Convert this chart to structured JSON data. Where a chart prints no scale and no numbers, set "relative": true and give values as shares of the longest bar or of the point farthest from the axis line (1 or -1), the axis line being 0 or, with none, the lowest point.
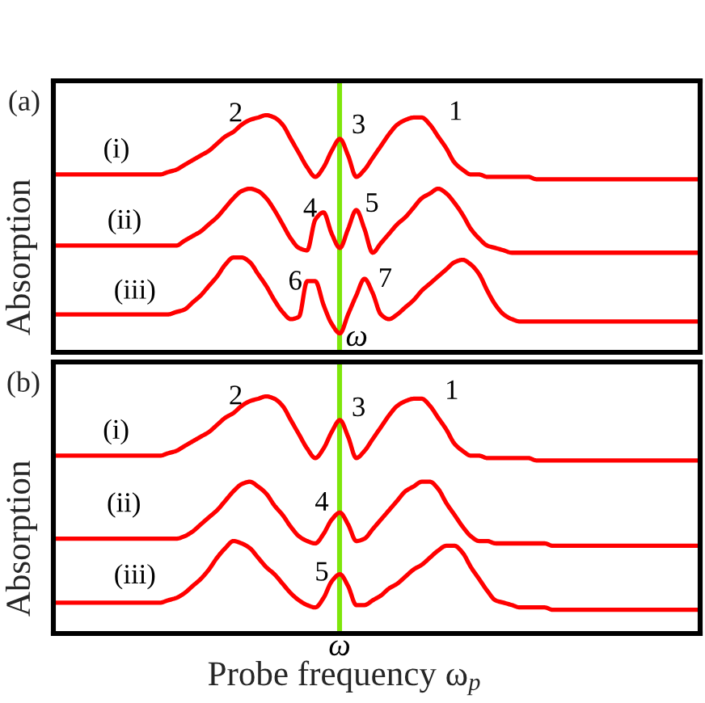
{
  "chart_data": [
    {
      "type": "line",
      "title": "(a)",
      "ylabel": "Absorption",
      "relative": true,
      "categories": [
        null,
        null,
        null,
        null,
        null,
        null,
        null,
        null,
        null,
        null,
        null,
        null,
        null,
        null,
        null,
        null,
        null,
        null,
        null,
        null,
        null,
        null,
        null,
        null,
        null,
        null,
        null,
        null,
        null,
        null,
        null,
        null,
        null,
        null,
        null,
        null,
        null,
        null,
        null,
        null,
        null,
        null,
        null,
        null,
        null,
        null,
        null,
        null,
        null,
        null,
        null,
        null,
        null,
        null,
        null,
        null,
        null,
        null,
        null,
        null,
        null,
        null,
        null,
        null,
        null,
        null,
        null,
        null,
        null,
        null,
        null,
        null,
        null,
        null,
        null,
        null,
        null,
        null,
        null,
        null
      ],
      "series": [
        {
          "name": "(i)",
          "color": "#ff0000",
          "values": [
            0.75,
            0.75,
            0.75,
            0.75,
            0.75,
            0.75,
            0.75,
            0.75,
            0.75,
            0.75,
            0.75,
            0.75,
            0.75,
            0.75,
            0.76,
            0.77,
            0.79,
            0.81,
            0.83,
            0.85,
            0.88,
            0.91,
            0.93,
            0.96,
            0.98,
            0.99,
            1.0,
            0.99,
            0.96,
            0.9,
            0.84,
            0.78,
            0.74,
            0.78,
            0.85,
            0.9,
            0.83,
            0.74,
            0.77,
            0.82,
            0.87,
            0.92,
            0.96,
            0.98,
            0.99,
            0.99,
            0.96,
            0.91,
            0.86,
            0.8,
            0.77,
            0.75,
            0.75,
            0.74,
            0.74,
            0.74,
            0.74,
            0.74,
            0.74,
            0.73,
            0.73,
            0.73,
            0.73,
            0.73,
            0.73,
            0.73,
            0.73,
            0.73,
            0.73,
            0.73,
            0.73,
            0.73,
            0.73,
            0.73,
            0.73,
            0.73,
            0.73,
            0.73,
            0.73,
            0.73
          ]
        },
        {
          "name": "(ii)",
          "color": "#ff0000",
          "values": [
            0.45,
            0.45,
            0.45,
            0.45,
            0.45,
            0.45,
            0.45,
            0.45,
            0.45,
            0.45,
            0.45,
            0.45,
            0.45,
            0.45,
            0.45,
            0.45,
            0.47,
            0.49,
            0.51,
            0.54,
            0.57,
            0.61,
            0.65,
            0.68,
            0.69,
            0.68,
            0.65,
            0.6,
            0.54,
            0.48,
            0.44,
            0.43,
            0.56,
            0.59,
            0.5,
            0.44,
            0.52,
            0.6,
            0.52,
            0.42,
            0.46,
            0.5,
            0.54,
            0.57,
            0.61,
            0.65,
            0.67,
            0.69,
            0.67,
            0.63,
            0.58,
            0.52,
            0.48,
            0.45,
            0.44,
            0.43,
            0.42,
            0.42,
            0.42,
            0.42,
            0.42,
            0.42,
            0.42,
            0.42,
            0.42,
            0.42,
            0.42,
            0.42,
            0.42,
            0.42,
            0.42,
            0.42,
            0.42,
            0.42,
            0.42,
            0.42,
            0.42,
            0.42,
            0.42,
            0.42
          ]
        },
        {
          "name": "(iii)",
          "color": "#ff0000",
          "values": [
            0.16,
            0.16,
            0.16,
            0.16,
            0.16,
            0.16,
            0.16,
            0.16,
            0.16,
            0.16,
            0.16,
            0.16,
            0.16,
            0.16,
            0.16,
            0.17,
            0.18,
            0.21,
            0.24,
            0.28,
            0.32,
            0.37,
            0.4,
            0.4,
            0.38,
            0.33,
            0.28,
            0.22,
            0.17,
            0.14,
            0.15,
            0.3,
            0.3,
            0.2,
            0.12,
            0.08,
            0.16,
            0.24,
            0.31,
            0.25,
            0.16,
            0.14,
            0.16,
            0.19,
            0.22,
            0.26,
            0.29,
            0.32,
            0.35,
            0.38,
            0.39,
            0.37,
            0.33,
            0.26,
            0.2,
            0.16,
            0.14,
            0.13,
            0.13,
            0.13,
            0.13,
            0.13,
            0.13,
            0.13,
            0.13,
            0.13,
            0.13,
            0.13,
            0.13,
            0.13,
            0.13,
            0.13,
            0.13,
            0.13,
            0.13,
            0.13,
            0.13,
            0.13,
            0.13,
            0.13
          ]
        }
      ],
      "annotations": [
        "2",
        "3",
        "1",
        "4",
        "5",
        "6",
        "7",
        "ω"
      ]
    },
    {
      "type": "line",
      "title": "(b)",
      "ylabel": "Absorption",
      "xlabel": "Probe frequency ω$_{p}$",
      "relative": true,
      "categories": [
        null,
        null,
        null,
        null,
        null,
        null,
        null,
        null,
        null,
        null,
        null,
        null,
        null,
        null,
        null,
        null,
        null,
        null,
        null,
        null,
        null,
        null,
        null,
        null,
        null,
        null,
        null,
        null,
        null,
        null,
        null,
        null,
        null,
        null,
        null,
        null,
        null,
        null,
        null,
        null,
        null,
        null,
        null,
        null,
        null,
        null,
        null,
        null,
        null,
        null,
        null,
        null,
        null,
        null,
        null,
        null,
        null,
        null,
        null,
        null,
        null,
        null,
        null,
        null,
        null,
        null,
        null,
        null,
        null,
        null,
        null,
        null,
        null,
        null,
        null,
        null,
        null,
        null,
        null,
        null
      ],
      "series": [
        {
          "name": "(i)",
          "color": "#ff0000",
          "values": [
            0.75,
            0.75,
            0.75,
            0.75,
            0.75,
            0.75,
            0.75,
            0.75,
            0.75,
            0.75,
            0.75,
            0.75,
            0.75,
            0.75,
            0.76,
            0.77,
            0.79,
            0.81,
            0.83,
            0.85,
            0.88,
            0.91,
            0.93,
            0.96,
            0.98,
            0.99,
            1.0,
            0.99,
            0.96,
            0.9,
            0.84,
            0.78,
            0.74,
            0.78,
            0.85,
            0.9,
            0.83,
            0.74,
            0.77,
            0.82,
            0.87,
            0.92,
            0.96,
            0.98,
            0.99,
            0.99,
            0.96,
            0.91,
            0.86,
            0.8,
            0.77,
            0.75,
            0.75,
            0.74,
            0.74,
            0.74,
            0.74,
            0.74,
            0.74,
            0.73,
            0.73,
            0.73,
            0.73,
            0.73,
            0.73,
            0.73,
            0.73,
            0.73,
            0.73,
            0.73,
            0.73,
            0.73,
            0.73,
            0.73,
            0.73,
            0.73,
            0.73,
            0.73,
            0.73,
            0.73
          ]
        },
        {
          "name": "(ii)",
          "color": "#ff0000",
          "values": [
            0.4,
            0.4,
            0.4,
            0.4,
            0.4,
            0.4,
            0.4,
            0.4,
            0.4,
            0.4,
            0.4,
            0.4,
            0.4,
            0.4,
            0.4,
            0.4,
            0.41,
            0.43,
            0.46,
            0.49,
            0.52,
            0.56,
            0.6,
            0.63,
            0.64,
            0.62,
            0.59,
            0.54,
            0.5,
            0.45,
            0.41,
            0.39,
            0.38,
            0.42,
            0.48,
            0.51,
            0.46,
            0.39,
            0.4,
            0.44,
            0.48,
            0.52,
            0.56,
            0.6,
            0.62,
            0.64,
            0.64,
            0.61,
            0.55,
            0.5,
            0.45,
            0.41,
            0.39,
            0.39,
            0.38,
            0.38,
            0.38,
            0.38,
            0.38,
            0.38,
            0.38,
            0.37,
            0.37,
            0.37,
            0.37,
            0.37,
            0.37,
            0.37,
            0.37,
            0.37,
            0.37,
            0.37,
            0.37,
            0.37,
            0.37,
            0.37,
            0.37,
            0.37,
            0.37,
            0.37
          ]
        },
        {
          "name": "(iii)",
          "color": "#ff0000",
          "values": [
            0.13,
            0.13,
            0.13,
            0.13,
            0.13,
            0.13,
            0.13,
            0.13,
            0.13,
            0.13,
            0.13,
            0.13,
            0.13,
            0.13,
            0.14,
            0.15,
            0.17,
            0.2,
            0.23,
            0.27,
            0.32,
            0.36,
            0.39,
            0.38,
            0.36,
            0.32,
            0.28,
            0.25,
            0.21,
            0.17,
            0.14,
            0.12,
            0.11,
            0.15,
            0.22,
            0.25,
            0.2,
            0.12,
            0.12,
            0.14,
            0.16,
            0.19,
            0.21,
            0.24,
            0.27,
            0.29,
            0.32,
            0.35,
            0.37,
            0.37,
            0.34,
            0.28,
            0.23,
            0.18,
            0.14,
            0.13,
            0.12,
            0.11,
            0.11,
            0.11,
            0.11,
            0.1,
            0.1,
            0.1,
            0.1,
            0.1,
            0.1,
            0.1,
            0.1,
            0.1,
            0.1,
            0.1,
            0.1,
            0.1,
            0.1,
            0.1,
            0.1,
            0.1,
            0.1,
            0.1
          ]
        }
      ],
      "annotations": [
        "2",
        "3",
        "1",
        "4",
        "5",
        "ω"
      ]
    }
  ]
}
